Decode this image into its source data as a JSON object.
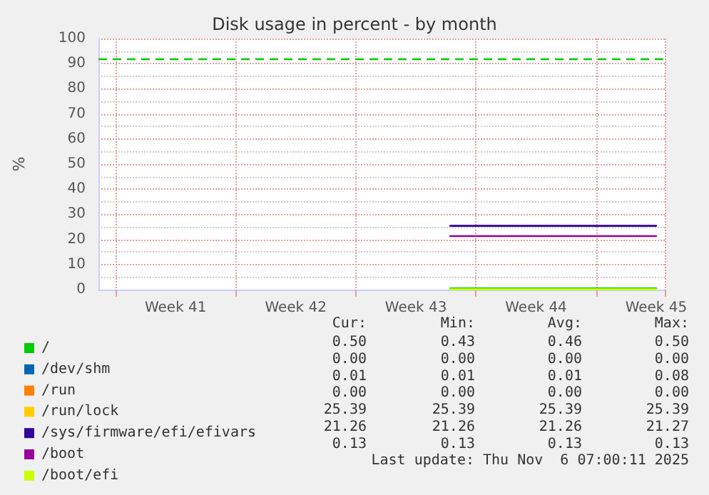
{
  "chart_data": {
    "type": "line",
    "title": "Disk usage in percent - by month",
    "ylabel": "%",
    "categories": [
      null,
      null,
      null,
      null,
      "Week 41",
      null,
      null,
      null,
      null,
      null,
      null,
      "Week 42",
      null,
      null,
      null,
      null,
      null,
      null,
      "Week 43",
      null,
      null,
      null,
      null,
      null,
      null,
      "Week 44",
      null,
      null,
      null,
      null,
      null,
      null,
      "Week 45"
    ],
    "ylim": [
      0,
      100
    ],
    "yticks": [
      0,
      10,
      20,
      30,
      40,
      50,
      60,
      70,
      80,
      90,
      100
    ],
    "grid": true,
    "legend": "bottom left",
    "marker": "none",
    "line_style": "solid",
    "series": [
      {
        "name": "/",
        "color": "#00cc00",
        "values": [
          null,
          null,
          null,
          null,
          null,
          null,
          null,
          null,
          null,
          null,
          null,
          null,
          null,
          null,
          null,
          null,
          null,
          null,
          null,
          null,
          0.5,
          0.5,
          0.5,
          0.5,
          0.5,
          0.5,
          0.5,
          0.5,
          0.5,
          0.5,
          0.5,
          0.5,
          0.5
        ]
      },
      {
        "name": "/dev/shm",
        "color": "#0066b3",
        "values": [
          null,
          null,
          null,
          null,
          null,
          null,
          null,
          null,
          null,
          null,
          null,
          null,
          null,
          null,
          null,
          null,
          null,
          null,
          null,
          null,
          null,
          null,
          null,
          null,
          null,
          null,
          null,
          null,
          null,
          null,
          null,
          null,
          null
        ]
      },
      {
        "name": "/run",
        "color": "#ff8000",
        "values": [
          null,
          null,
          null,
          null,
          null,
          null,
          null,
          null,
          null,
          null,
          null,
          null,
          null,
          null,
          null,
          null,
          null,
          null,
          null,
          null,
          null,
          null,
          null,
          null,
          null,
          null,
          null,
          null,
          null,
          null,
          null,
          null,
          null
        ]
      },
      {
        "name": "/run/lock",
        "color": "#ffcc00",
        "values": [
          null,
          null,
          null,
          null,
          null,
          null,
          null,
          null,
          null,
          null,
          null,
          null,
          null,
          null,
          null,
          null,
          null,
          null,
          null,
          null,
          null,
          null,
          null,
          null,
          null,
          null,
          null,
          null,
          null,
          null,
          null,
          null,
          null
        ]
      },
      {
        "name": "/sys/firmware/efi/efivars",
        "color": "#330099",
        "values": [
          null,
          null,
          null,
          null,
          null,
          null,
          null,
          null,
          null,
          null,
          null,
          null,
          null,
          null,
          null,
          null,
          null,
          null,
          null,
          null,
          25.4,
          25.4,
          25.4,
          25.4,
          25.4,
          25.4,
          25.4,
          25.4,
          25.4,
          25.4,
          25.4,
          25.4,
          25.4
        ]
      },
      {
        "name": "/boot",
        "color": "#990099",
        "values": [
          null,
          null,
          null,
          null,
          null,
          null,
          null,
          null,
          null,
          null,
          null,
          null,
          null,
          null,
          null,
          null,
          null,
          null,
          null,
          null,
          21.3,
          21.3,
          21.3,
          21.3,
          21.3,
          21.3,
          21.3,
          21.3,
          21.3,
          21.3,
          21.3,
          21.3,
          21.3
        ]
      },
      {
        "name": "/boot/efi",
        "color": "#ccff00",
        "values": [
          null,
          null,
          null,
          null,
          null,
          null,
          null,
          null,
          null,
          null,
          null,
          null,
          null,
          null,
          null,
          null,
          null,
          null,
          null,
          null,
          0.1,
          0.1,
          0.1,
          0.1,
          0.1,
          0.1,
          0.1,
          0.1,
          0.1,
          0.1,
          0.1,
          0.1,
          0.1
        ]
      }
    ],
    "ref_lines": [
      {
        "axis": "y",
        "value": 92,
        "color": "#00cc00",
        "line_style": "dashed"
      }
    ],
    "annotations": [
      "Cur:",
      "Min:",
      "Avg:",
      "Max:",
      "0.50",
      "0.43",
      "0.46",
      "0.50",
      "0.00",
      "0.00",
      "0.00",
      "0.00",
      "0.01",
      "0.01",
      "0.01",
      "0.08",
      "0.00",
      "0.00",
      "0.00",
      "0.00",
      "25.39",
      "25.39",
      "25.39",
      "25.39",
      "21.26",
      "21.26",
      "21.26",
      "21.27",
      "0.13",
      "0.13",
      "0.13",
      "0.13",
      "Last update: Thu Nov  6 07:00:11 2025"
    ]
  }
}
